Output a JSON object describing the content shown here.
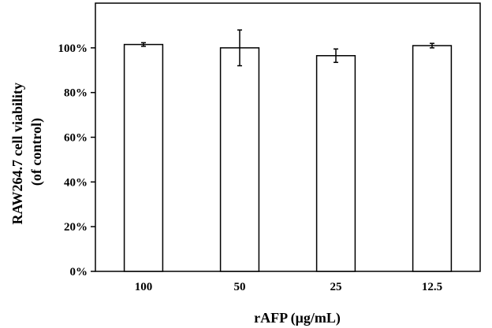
{
  "chart_data": {
    "type": "bar",
    "categories": [
      "100",
      "50",
      "25",
      "12.5"
    ],
    "series": [
      {
        "values": [
          101.5,
          100.0,
          96.5,
          101.0
        ],
        "errors": [
          0.8,
          8.0,
          3.0,
          1.0
        ]
      }
    ],
    "xlabel": "rAFP (μg/mL)",
    "ylabel_lines": [
      "RAW264.7 cell viability",
      "(of control)"
    ],
    "ylim": [
      0,
      120
    ],
    "yticks": [
      0,
      20,
      40,
      60,
      80,
      100
    ],
    "ytick_labels": [
      "0%",
      "20%",
      "40%",
      "60%",
      "80%",
      "100%"
    ],
    "grid": false,
    "legend": "none",
    "colors": {
      "bar_fill": "#ffffff",
      "bar_stroke": "#000000",
      "axis": "#000000"
    }
  }
}
